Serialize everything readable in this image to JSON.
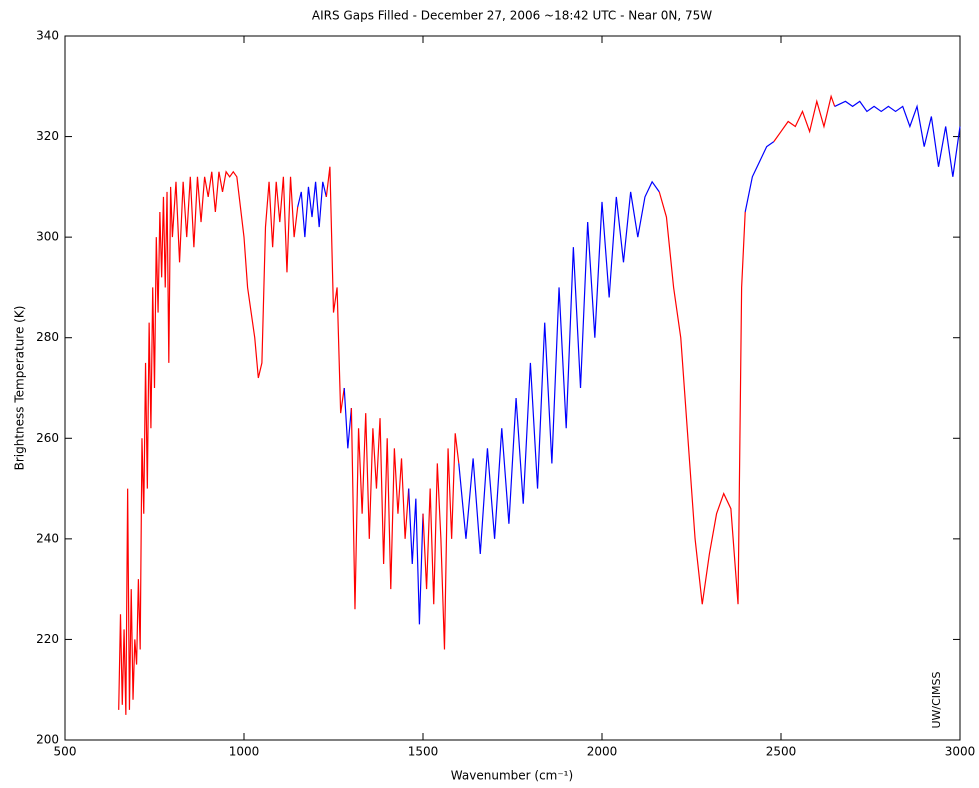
{
  "chart_data": {
    "type": "line",
    "title": "AIRS Gaps Filled - December 27, 2006 ~18:42 UTC - Near 0N, 75W",
    "x_label": "Wavenumber (cm⁻¹)",
    "y_label": "Brightness Temperature (K)",
    "annotation": "UW/CIMSS",
    "xlim": [
      500,
      3000
    ],
    "xticks": [
      500,
      1000,
      1500,
      2000,
      2500,
      3000
    ],
    "ylim": [
      200,
      340
    ],
    "yticks": [
      200,
      220,
      240,
      260,
      280,
      300,
      320,
      340
    ],
    "grid": false,
    "series": [
      {
        "color": "#ff0000",
        "x": [
          650,
          655,
          660,
          665,
          670,
          675,
          680,
          685,
          690,
          695,
          700,
          705,
          710,
          715,
          720,
          725,
          730,
          735,
          740,
          745,
          750,
          755,
          760,
          765,
          770,
          775,
          780,
          785,
          790,
          795,
          800,
          810,
          820,
          830,
          840,
          850,
          860,
          870,
          880,
          890,
          900,
          910,
          920,
          930,
          940,
          950,
          960,
          970,
          980,
          990,
          1000,
          1010,
          1020,
          1030,
          1040,
          1050,
          1060,
          1070,
          1080,
          1090,
          1100,
          1110,
          1120,
          1130,
          1140,
          1150
        ],
        "values": [
          206,
          225,
          207,
          222,
          205,
          250,
          206,
          230,
          208,
          220,
          215,
          232,
          218,
          260,
          245,
          275,
          250,
          283,
          262,
          290,
          270,
          300,
          285,
          305,
          292,
          308,
          290,
          309,
          275,
          310,
          300,
          311,
          295,
          311,
          300,
          312,
          298,
          312,
          303,
          312,
          308,
          313,
          305,
          313,
          309,
          313,
          312,
          313,
          312,
          306,
          300,
          290,
          285,
          280,
          272,
          275,
          302,
          311,
          298,
          311,
          303,
          312,
          293,
          312,
          300,
          306
        ]
      },
      {
        "color": "#0000ff",
        "x": [
          1150,
          1160,
          1170,
          1180,
          1190,
          1200,
          1210,
          1220,
          1230
        ],
        "values": [
          306,
          309,
          300,
          310,
          304,
          311,
          302,
          311,
          308
        ]
      },
      {
        "color": "#ff0000",
        "x": [
          1230,
          1240,
          1250,
          1260,
          1270,
          1280
        ],
        "values": [
          308,
          314,
          285,
          290,
          265,
          270
        ]
      },
      {
        "color": "#0000ff",
        "x": [
          1280,
          1290,
          1300
        ],
        "values": [
          270,
          258,
          266
        ]
      },
      {
        "color": "#ff0000",
        "x": [
          1300,
          1310,
          1320,
          1330,
          1340,
          1350,
          1360,
          1370,
          1380,
          1390,
          1400,
          1410,
          1420,
          1430,
          1440,
          1450,
          1460
        ],
        "values": [
          266,
          226,
          262,
          245,
          265,
          240,
          262,
          250,
          264,
          235,
          260,
          230,
          258,
          245,
          256,
          240,
          250
        ]
      },
      {
        "color": "#0000ff",
        "x": [
          1460,
          1470,
          1480,
          1490,
          1500
        ],
        "values": [
          250,
          235,
          248,
          223,
          245
        ]
      },
      {
        "color": "#ff0000",
        "x": [
          1500,
          1510,
          1520,
          1530,
          1540,
          1550,
          1560,
          1570,
          1580,
          1590,
          1600
        ],
        "values": [
          245,
          230,
          250,
          227,
          255,
          240,
          218,
          258,
          240,
          261,
          255
        ]
      },
      {
        "color": "#0000ff",
        "x": [
          1600,
          1620,
          1640,
          1660,
          1680,
          1700,
          1720,
          1740,
          1760,
          1780,
          1800,
          1820,
          1840,
          1860,
          1880,
          1900,
          1920,
          1940,
          1960,
          1980,
          2000,
          2020,
          2040,
          2060,
          2080,
          2100,
          2120,
          2140,
          2160
        ],
        "values": [
          255,
          240,
          256,
          237,
          258,
          240,
          262,
          243,
          268,
          247,
          275,
          250,
          283,
          255,
          290,
          262,
          298,
          270,
          303,
          280,
          307,
          288,
          308,
          295,
          309,
          300,
          308,
          311,
          309
        ]
      },
      {
        "color": "#ff0000",
        "x": [
          2160,
          2180,
          2200,
          2220,
          2240,
          2260,
          2280,
          2300,
          2320,
          2340,
          2360,
          2380,
          2390,
          2400
        ],
        "values": [
          309,
          304,
          290,
          280,
          260,
          240,
          227,
          237,
          245,
          249,
          246,
          227,
          290,
          305
        ]
      },
      {
        "color": "#0000ff",
        "x": [
          2400,
          2420,
          2440,
          2460,
          2480
        ],
        "values": [
          305,
          312,
          315,
          318,
          319
        ]
      },
      {
        "color": "#ff0000",
        "x": [
          2480,
          2500,
          2520,
          2540,
          2560,
          2580,
          2600,
          2620,
          2640,
          2650
        ],
        "values": [
          319,
          321,
          323,
          322,
          325,
          321,
          327,
          322,
          328,
          326
        ]
      },
      {
        "color": "#0000ff",
        "x": [
          2650,
          2680,
          2700,
          2720,
          2740,
          2760,
          2780,
          2800,
          2820,
          2840,
          2860,
          2880,
          2900,
          2920,
          2940,
          2960,
          2980,
          3000
        ],
        "values": [
          326,
          327,
          326,
          327,
          325,
          326,
          325,
          326,
          325,
          326,
          322,
          326,
          318,
          324,
          314,
          322,
          312,
          322
        ]
      }
    ]
  }
}
